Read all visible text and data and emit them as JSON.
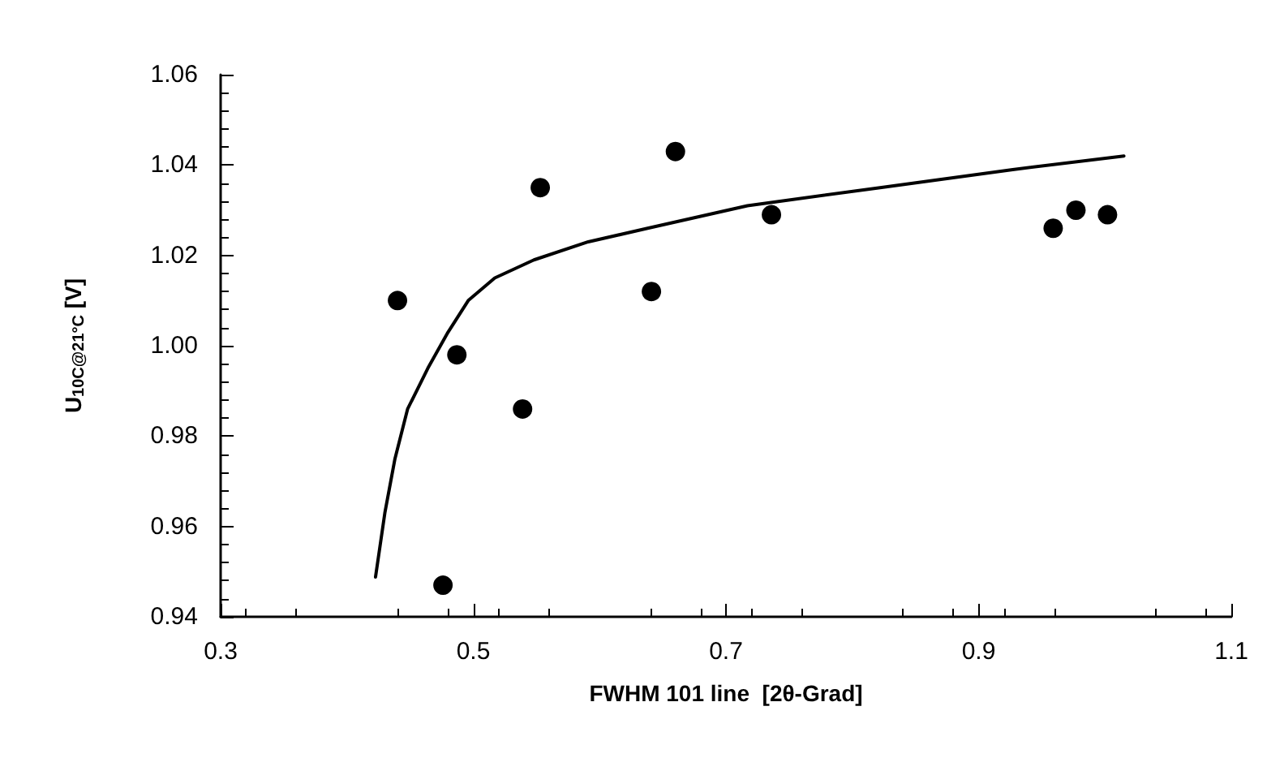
{
  "chart_data": {
    "type": "scatter",
    "xlabel": "FWHM 101 line  [2θ-Grad]",
    "ylabel": "U$_{10C@21°C}$ [V]",
    "xlim": [
      0.3,
      1.1
    ],
    "xticks": [
      0.3,
      0.5,
      0.7,
      0.9,
      1.1
    ],
    "ylim": [
      0.94,
      1.06
    ],
    "yticks": [
      0.94,
      0.96,
      0.98,
      {
        "value": 1,
        "label": "1.00"
      },
      1.02,
      1.04,
      1.06
    ],
    "grid": false,
    "marker": "circle",
    "series": [
      {
        "color": "#000000",
        "x": [
          0.44,
          0.476,
          0.487,
          0.539,
          0.553,
          0.641,
          0.66,
          0.736,
          0.959,
          0.977,
          1.002
        ],
        "values": [
          1.01,
          0.947,
          0.998,
          0.986,
          1.035,
          1.012,
          1.043,
          1.029,
          1.026,
          1.03,
          1.029
        ]
      },
      {
        "type": "line",
        "color": "#000000",
        "marker": "none",
        "line_style": "solid",
        "x": [
          0.4226,
          0.43,
          0.438,
          0.448,
          0.464,
          0.48,
          0.496,
          0.517,
          0.548,
          0.591,
          0.638,
          0.717,
          0.822,
          0.927,
          1.015
        ],
        "values": [
          0.9488,
          0.963,
          0.975,
          0.986,
          0.995,
          1.003,
          1.01,
          1.015,
          1.019,
          1.023,
          1.026,
          1.031,
          1.035,
          1.039,
          1.042
        ]
      }
    ]
  }
}
